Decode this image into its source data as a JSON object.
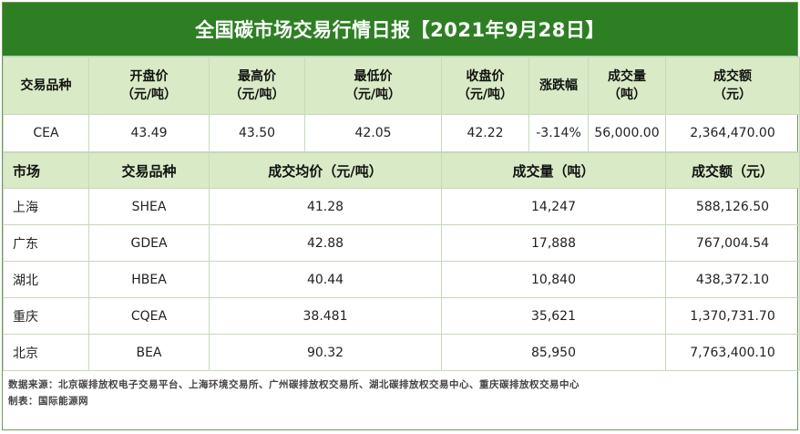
{
  "title": "全国碳市场交易行情日报【2021年9月28日】",
  "national": {
    "headers": [
      {
        "line1": "交易品种",
        "line2": ""
      },
      {
        "line1": "开盘价",
        "line2": "（元/吨）"
      },
      {
        "line1": "最高价",
        "line2": "（元/吨）"
      },
      {
        "line1": "最低价",
        "line2": "（元/吨）"
      },
      {
        "line1": "收盘价",
        "line2": "（元/吨）"
      },
      {
        "line1": "涨跌幅",
        "line2": ""
      },
      {
        "line1": "成交量",
        "line2": "（吨）"
      },
      {
        "line1": "成交额",
        "line2": "（元）"
      }
    ],
    "row": [
      "CEA",
      "43.49",
      "43.50",
      "42.05",
      "42.22",
      "-3.14%",
      "56,000.00",
      "2,364,470.00"
    ]
  },
  "regional": {
    "headers": [
      "市场",
      "交易品种",
      "成交均价（元/吨）",
      "成交量（吨）",
      "成交额（元）"
    ],
    "rows": [
      [
        "上海",
        "SHEA",
        "41.28",
        "14,247",
        "588,126.50"
      ],
      [
        "广东",
        "GDEA",
        "42.88",
        "17,888",
        "767,004.54"
      ],
      [
        "湖北",
        "HBEA",
        "40.44",
        "10,840",
        "438,372.10"
      ],
      [
        "重庆",
        "CQEA",
        "38.481",
        "35,621",
        "1,370,731.70"
      ],
      [
        "北京",
        "BEA",
        "90.32",
        "85,950",
        "7,763,400.10"
      ]
    ]
  },
  "footer": {
    "source": "数据来源：北京碳排放权电子交易平台、上海环境交易所、广州碳排放权交易所、湖北碳排放权交易中心、重庆碳排放权交易中心",
    "producer": "制表：国际能源网"
  },
  "colors": {
    "title_bg": "#2e7f24",
    "header_bg": "#d9ebc6",
    "border": "#c6d8bc"
  }
}
